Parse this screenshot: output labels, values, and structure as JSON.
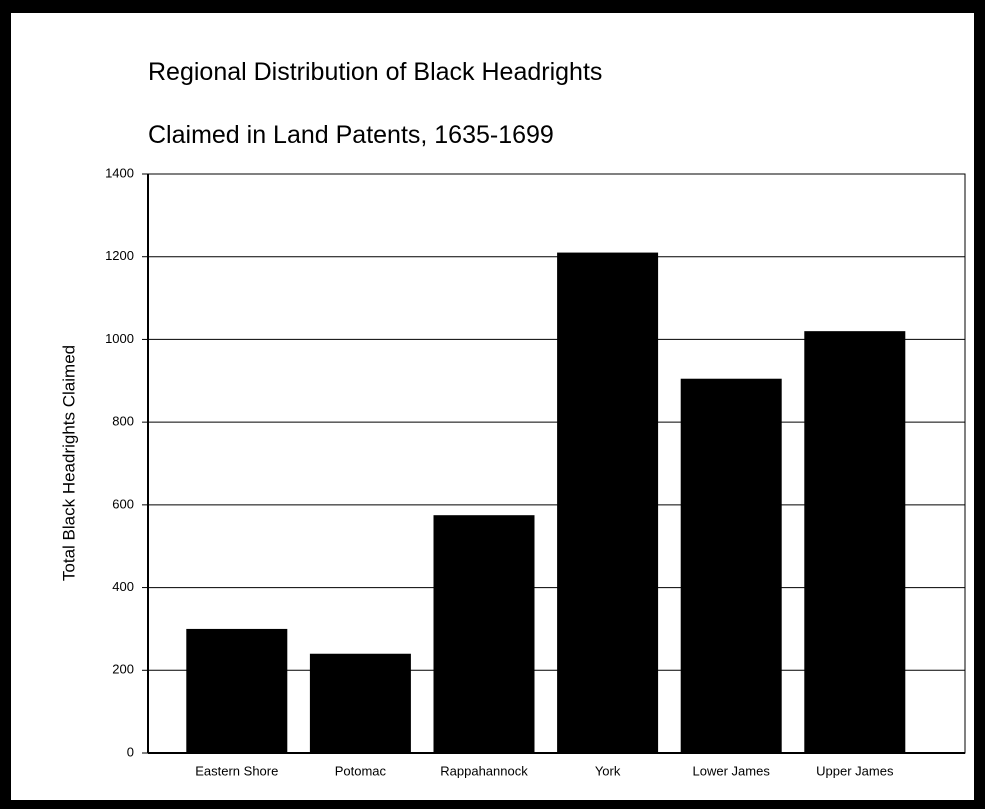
{
  "chart_data": {
    "type": "bar",
    "title": "Regional Distribution of Black Headrights",
    "subtitle": "Claimed in Land Patents, 1635-1699",
    "y_label": "Total Black Headrights Claimed",
    "categories": [
      "Eastern Shore",
      "Potomac",
      "Rappahannock",
      "York",
      "Lower James",
      "Upper James"
    ],
    "values": [
      300,
      240,
      575,
      1210,
      905,
      1020
    ],
    "color": "#000000",
    "ylim": [
      0,
      1400
    ],
    "yticks": [
      0,
      200,
      400,
      600,
      800,
      1000,
      1200,
      1400
    ],
    "grid": true
  }
}
